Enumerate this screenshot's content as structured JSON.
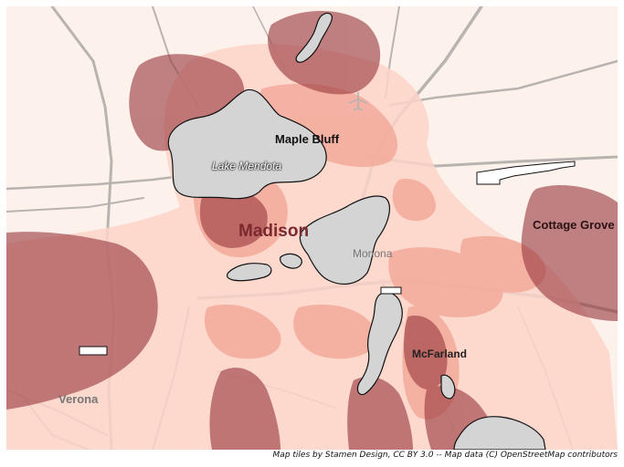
{
  "map": {
    "places": {
      "madison": "Madison",
      "maple_bluff": "Maple Bluff",
      "lake_mendota": "Lake Mendota",
      "monona": "Monona",
      "cottage_grove": "Cottage Grove",
      "mcfarland": "McFarland",
      "verona": "Verona"
    },
    "icons": {
      "airport": "airplane-icon"
    },
    "colors": {
      "background": "#fdf1ec",
      "water": "#d4d4d4",
      "road": "#b9b3b0",
      "density_low": "#fbd3c8",
      "density_mid": "#ef8a7a",
      "density_high": "#9a3a3f"
    }
  },
  "attribution": "Map tiles by Stamen Design, CC BY 3.0 -- Map data (C) OpenStreetMap contributors"
}
